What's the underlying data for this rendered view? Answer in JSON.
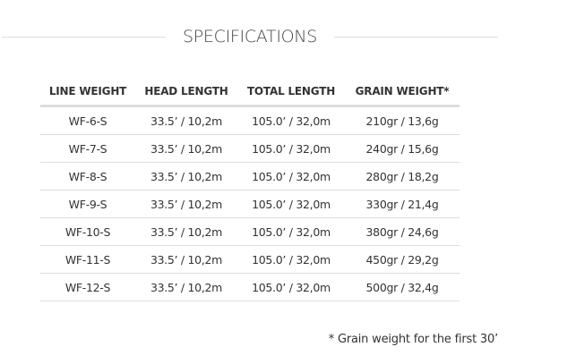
{
  "title": "SPECIFICATIONS",
  "table": {
    "headers": [
      "LINE WEIGHT",
      "HEAD LENGTH",
      "TOTAL LENGTH",
      "GRAIN WEIGHT*"
    ],
    "rows": [
      [
        "WF-6-S",
        "33.5’ / 10,2m",
        "105.0’ / 32,0m",
        "210gr / 13,6g"
      ],
      [
        "WF-7-S",
        "33.5’ / 10,2m",
        "105.0’ / 32,0m",
        "240gr / 15,6g"
      ],
      [
        "WF-8-S",
        "33.5’ / 10,2m",
        "105.0’ / 32,0m",
        "280gr / 18,2g"
      ],
      [
        "WF-9-S",
        "33.5’ / 10,2m",
        "105.0’ / 32,0m",
        "330gr / 21,4g"
      ],
      [
        "WF-10-S",
        "33.5’ / 10,2m",
        "105.0’ / 32,0m",
        "380gr / 24,6g"
      ],
      [
        "WF-11-S",
        "33.5’ / 10,2m",
        "105.0’ / 32,0m",
        "450gr / 29,2g"
      ],
      [
        "WF-12-S",
        "33.5’ / 10,2m",
        "105.0’ / 32,0m",
        "500gr / 32,4g"
      ]
    ]
  },
  "footnote": "* Grain weight for the first 30’"
}
